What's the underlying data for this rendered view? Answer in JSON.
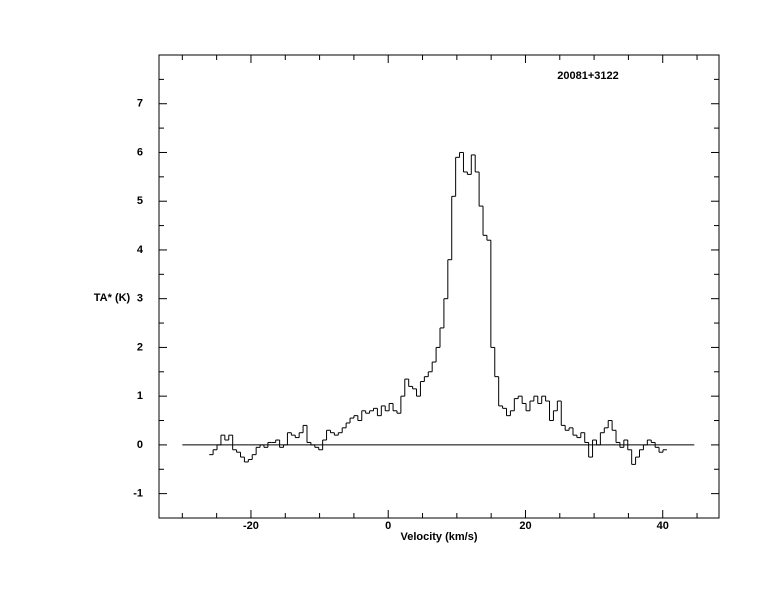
{
  "chart_data": {
    "type": "step",
    "annotation": "20081+3122",
    "xlabel": "Velocity (km/s)",
    "ylabel": "TA* (K)",
    "xlim": [
      -33.4,
      48.2
    ],
    "ylim": [
      -1.5,
      8.0
    ],
    "xticks": [
      -20,
      0,
      20,
      40
    ],
    "yticks": [
      -1,
      0,
      1,
      2,
      3,
      4,
      5,
      6,
      7
    ],
    "xminorticks": [
      -30,
      -25,
      -15,
      -10,
      -5,
      5,
      10,
      15,
      25,
      30,
      35,
      45
    ],
    "yminorticks": [
      -0.5,
      0.5,
      1.5,
      2.5,
      3.5,
      4.5,
      5.5,
      6.5,
      7.5
    ],
    "zero_line": {
      "x": [
        -30,
        44.6
      ],
      "y": 0
    },
    "color": "#000000",
    "x": [
      -25.8,
      -25.23,
      -24.66,
      -24.09,
      -23.52,
      -22.95,
      -22.38,
      -21.81,
      -21.24,
      -20.67,
      -20.1,
      -19.53,
      -18.96,
      -18.39,
      -17.82,
      -17.25,
      -16.68,
      -16.11,
      -15.54,
      -14.97,
      -14.4,
      -13.83,
      -13.26,
      -12.69,
      -12.12,
      -11.55,
      -10.98,
      -10.41,
      -9.84,
      -9.27,
      -8.7,
      -8.13,
      -7.56,
      -6.99,
      -6.42,
      -5.85,
      -5.28,
      -4.71,
      -4.14,
      -3.57,
      -3.0,
      -2.43,
      -1.86,
      -1.29,
      -0.72,
      -0.15,
      0.42,
      0.99,
      1.56,
      2.13,
      2.7,
      3.27,
      3.84,
      4.41,
      4.98,
      5.55,
      6.12,
      6.69,
      7.26,
      7.83,
      8.4,
      8.97,
      9.54,
      10.11,
      10.68,
      11.25,
      11.82,
      12.39,
      12.96,
      13.53,
      14.1,
      14.67,
      15.24,
      15.81,
      16.38,
      16.95,
      17.52,
      18.09,
      18.66,
      19.23,
      19.8,
      20.37,
      20.94,
      21.51,
      22.08,
      22.65,
      23.22,
      23.79,
      24.36,
      24.93,
      25.5,
      26.07,
      26.64,
      27.21,
      27.78,
      28.35,
      28.92,
      29.49,
      30.06,
      30.63,
      31.2,
      31.77,
      32.34,
      32.91,
      33.48,
      34.05,
      34.62,
      35.19,
      35.76,
      36.33,
      36.9,
      37.47,
      38.04,
      38.61,
      39.18,
      39.75,
      40.32
    ],
    "values": [
      -0.2,
      -0.1,
      0.0,
      0.2,
      0.1,
      0.2,
      -0.1,
      -0.15,
      -0.25,
      -0.35,
      -0.3,
      -0.2,
      -0.05,
      0.0,
      -0.05,
      0.05,
      0.05,
      0.1,
      -0.05,
      0.0,
      0.25,
      0.2,
      0.15,
      0.25,
      0.4,
      0.05,
      0.0,
      -0.05,
      -0.1,
      0.1,
      0.3,
      0.25,
      0.2,
      0.25,
      0.35,
      0.45,
      0.55,
      0.6,
      0.5,
      0.7,
      0.65,
      0.7,
      0.75,
      0.6,
      0.8,
      0.7,
      0.85,
      0.7,
      0.65,
      1.0,
      1.35,
      1.2,
      1.15,
      1.0,
      1.3,
      1.4,
      1.5,
      1.7,
      2.0,
      2.4,
      3.0,
      3.8,
      5.1,
      5.9,
      6.0,
      5.6,
      5.55,
      5.95,
      5.6,
      4.9,
      4.3,
      4.2,
      2.0,
      1.4,
      0.8,
      0.75,
      0.6,
      0.7,
      0.95,
      1.0,
      0.85,
      0.7,
      0.9,
      1.0,
      0.85,
      1.0,
      0.9,
      0.5,
      0.7,
      0.9,
      0.4,
      0.3,
      0.35,
      0.2,
      0.15,
      0.25,
      0.05,
      -0.25,
      0.1,
      0.0,
      0.25,
      0.35,
      0.5,
      0.3,
      0.05,
      -0.05,
      0.1,
      -0.1,
      -0.4,
      -0.25,
      -0.1,
      0.0,
      0.1,
      0.05,
      -0.05,
      -0.15,
      -0.1
    ]
  }
}
